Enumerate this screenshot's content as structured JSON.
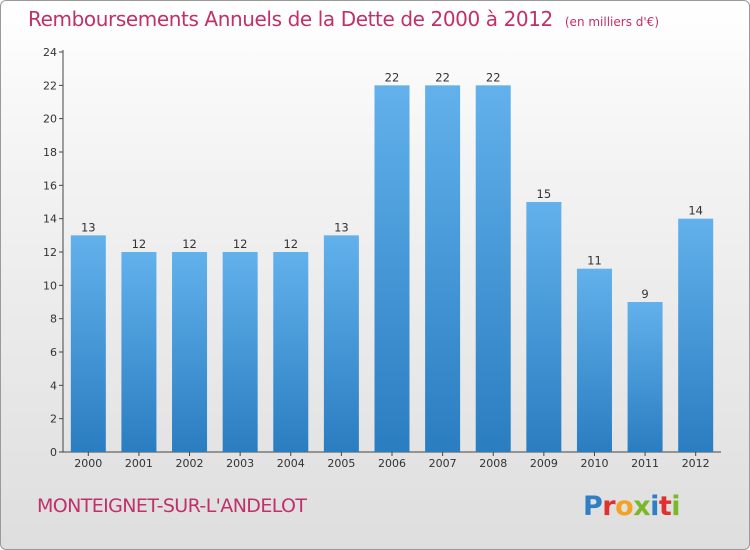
{
  "title": "Remboursements Annuels de la Dette de 2000 à 2012",
  "unit": "(en milliers d'€)",
  "place": "MONTEIGNET-SUR-L'ANDELOT",
  "logo": {
    "text": "Proxiti",
    "letter_colors": [
      "#2e7fc4",
      "#e0312e",
      "#f2a323",
      "#7ab829",
      "#2e7fc4",
      "#e0312e",
      "#7ab829"
    ]
  },
  "colors": {
    "title": "#c0306a",
    "bar_light": "#62b1ec",
    "bar_dark": "#2a7dc0"
  },
  "chart_data": {
    "type": "bar",
    "categories": [
      "2000",
      "2001",
      "2002",
      "2003",
      "2004",
      "2005",
      "2006",
      "2007",
      "2008",
      "2009",
      "2010",
      "2011",
      "2012"
    ],
    "values": [
      13,
      12,
      12,
      12,
      12,
      13,
      22,
      22,
      22,
      15,
      11,
      9,
      14
    ],
    "ylim": [
      0,
      24
    ],
    "yticks": [
      0,
      2,
      4,
      6,
      8,
      10,
      12,
      14,
      16,
      18,
      20,
      22,
      24
    ],
    "grid": false,
    "legend": "none"
  }
}
